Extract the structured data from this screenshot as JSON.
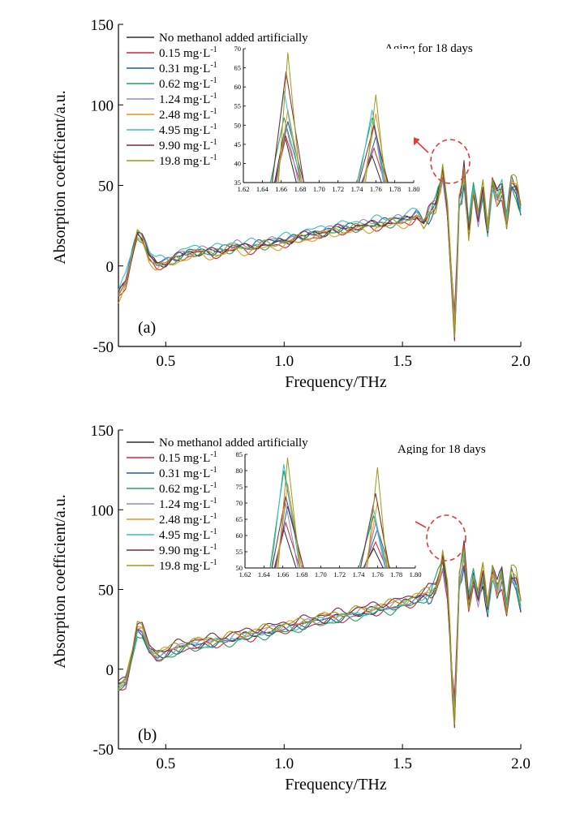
{
  "panels": [
    {
      "panel_label": "(a)",
      "annotation": "Aging for 18 days",
      "xlabel": "Frequency/THz",
      "ylabel": "Absorption coefficient/a.u.",
      "x_ticks": [
        "0.5",
        "1.0",
        "1.5",
        "2.0"
      ],
      "y_ticks": [
        "150",
        "100",
        "50",
        "0",
        "-50"
      ],
      "inset_x_ticks": [
        "1.62",
        "1.64",
        "1.66",
        "1.68",
        "1.70",
        "1.72",
        "1.74",
        "1.76",
        "1.78",
        "1.80"
      ],
      "inset_y_ticks": [
        "70",
        "65",
        "60",
        "55",
        "50",
        "45",
        "40",
        "35"
      ]
    },
    {
      "panel_label": "(b)",
      "annotation": "Aging for 18 days",
      "xlabel": "Frequency/THz",
      "ylabel": "Absorption coefficient/a.u.",
      "x_ticks": [
        "0.5",
        "1.0",
        "1.5",
        "2.0"
      ],
      "y_ticks": [
        "150",
        "100",
        "50",
        "0",
        "-50"
      ],
      "inset_x_ticks": [
        "1.62",
        "1.64",
        "1.66",
        "1.68",
        "1.70",
        "1.72",
        "1.74",
        "1.76",
        "1.78",
        "1.80"
      ],
      "inset_y_ticks": [
        "85",
        "80",
        "75",
        "70",
        "65",
        "60",
        "55",
        "50"
      ]
    }
  ],
  "legend": [
    {
      "name": "No methanol added artificially",
      "color": "#2b2b2b"
    },
    {
      "name": "0.15 mg·L",
      "exp": "-1",
      "color": "#d0263d"
    },
    {
      "name": "0.31 mg·L",
      "exp": "-1",
      "color": "#1f5a9a"
    },
    {
      "name": "0.62 mg·L",
      "exp": "-1",
      "color": "#23a05a"
    },
    {
      "name": "1.24 mg·L",
      "exp": "-1",
      "color": "#9b82c8"
    },
    {
      "name": "2.48 mg·L",
      "exp": "-1",
      "color": "#e8961e"
    },
    {
      "name": "4.95 mg·L",
      "exp": "-1",
      "color": "#3cbcc4"
    },
    {
      "name": "9.90 mg·L",
      "exp": "-1",
      "color": "#7a2a3a"
    },
    {
      "name": "19.8 mg·L",
      "exp": "-1",
      "color": "#9a9a1c"
    }
  ],
  "chart_data": [
    {
      "type": "line",
      "panel": "(a)",
      "xlabel": "Frequency/THz",
      "ylabel": "Absorption coefficient/a.u.",
      "xlim": [
        0.3,
        2.0
      ],
      "ylim": [
        -50,
        150
      ],
      "base_curve": {
        "x": [
          0.3,
          0.33,
          0.36,
          0.38,
          0.4,
          0.43,
          0.46,
          0.5,
          0.55,
          0.6,
          0.65,
          0.7,
          0.75,
          0.8,
          0.85,
          0.9,
          0.95,
          1.0,
          1.05,
          1.1,
          1.15,
          1.2,
          1.25,
          1.3,
          1.35,
          1.4,
          1.45,
          1.5,
          1.53,
          1.56,
          1.59,
          1.62,
          1.64,
          1.66,
          1.67,
          1.69,
          1.7,
          1.71,
          1.72,
          1.73,
          1.74,
          1.75,
          1.76,
          1.78,
          1.8,
          1.82,
          1.84,
          1.86,
          1.88,
          1.9,
          1.92,
          1.94,
          1.96,
          1.98,
          2.0
        ],
        "y": [
          -18,
          -10,
          8,
          20,
          17,
          6,
          1,
          2,
          5,
          8,
          9,
          8,
          10,
          12,
          11,
          13,
          14,
          15,
          17,
          19,
          20,
          22,
          23,
          24,
          25,
          26,
          27,
          28,
          29,
          32,
          26,
          34,
          38,
          50,
          60,
          35,
          10,
          -15,
          -40,
          -5,
          40,
          44,
          58,
          22,
          48,
          30,
          48,
          22,
          52,
          42,
          48,
          28,
          52,
          48,
          35
        ]
      },
      "series": [
        {
          "name": "No methanol added artificially",
          "offset": 0,
          "peak_scale": 0.92
        },
        {
          "name": "0.15 mg·L-1",
          "offset": -2,
          "peak_scale": 0.9
        },
        {
          "name": "0.31 mg·L-1",
          "offset": 1,
          "peak_scale": 0.94
        },
        {
          "name": "0.62 mg·L-1",
          "offset": -1,
          "peak_scale": 0.96
        },
        {
          "name": "1.24 mg·L-1",
          "offset": 2,
          "peak_scale": 0.98
        },
        {
          "name": "2.48 mg·L-1",
          "offset": -3,
          "peak_scale": 1.02
        },
        {
          "name": "4.95 mg·L-1",
          "offset": 4,
          "peak_scale": 1.0
        },
        {
          "name": "9.90 mg·L-1",
          "offset": 1,
          "peak_scale": 1.05
        },
        {
          "name": "19.8 mg·L-1",
          "offset": 0,
          "peak_scale": 1.08
        }
      ],
      "inset": {
        "xlim": [
          1.62,
          1.8
        ],
        "ylim": [
          35,
          70
        ],
        "peak1_x": 1.665,
        "peak2_x": 1.758,
        "peak1_heights": [
          48,
          47,
          51,
          52,
          50,
          54,
          59,
          64,
          69
        ],
        "peak2_heights": [
          42,
          44,
          47,
          52,
          50,
          53,
          54,
          50,
          58
        ]
      }
    },
    {
      "type": "line",
      "panel": "(b)",
      "xlabel": "Frequency/THz",
      "ylabel": "Absorption coefficient/a.u.",
      "xlim": [
        0.3,
        2.0
      ],
      "ylim": [
        -50,
        150
      ],
      "base_curve": {
        "x": [
          0.3,
          0.33,
          0.36,
          0.38,
          0.4,
          0.43,
          0.46,
          0.5,
          0.55,
          0.6,
          0.65,
          0.7,
          0.75,
          0.8,
          0.85,
          0.9,
          0.95,
          1.0,
          1.05,
          1.1,
          1.15,
          1.2,
          1.25,
          1.3,
          1.35,
          1.4,
          1.45,
          1.5,
          1.53,
          1.56,
          1.59,
          1.62,
          1.64,
          1.66,
          1.67,
          1.69,
          1.7,
          1.71,
          1.72,
          1.73,
          1.74,
          1.75,
          1.76,
          1.78,
          1.8,
          1.82,
          1.84,
          1.86,
          1.88,
          1.9,
          1.92,
          1.94,
          1.96,
          1.98,
          2.0
        ],
        "y": [
          -12,
          -8,
          10,
          25,
          24,
          12,
          8,
          10,
          13,
          15,
          16,
          17,
          18,
          20,
          21,
          23,
          24,
          26,
          27,
          29,
          31,
          32,
          33,
          35,
          36,
          38,
          39,
          41,
          42,
          44,
          46,
          48,
          52,
          62,
          70,
          50,
          25,
          -10,
          -30,
          10,
          55,
          62,
          72,
          42,
          58,
          45,
          60,
          38,
          62,
          50,
          60,
          38,
          60,
          55,
          40
        ]
      },
      "series": [
        {
          "name": "No methanol added artificially",
          "offset": 0,
          "peak_scale": 0.88
        },
        {
          "name": "0.15 mg·L-1",
          "offset": -2,
          "peak_scale": 0.86
        },
        {
          "name": "0.31 mg·L-1",
          "offset": -1,
          "peak_scale": 0.94
        },
        {
          "name": "0.62 mg·L-1",
          "offset": -3,
          "peak_scale": 1.02
        },
        {
          "name": "1.24 mg·L-1",
          "offset": 1,
          "peak_scale": 0.98
        },
        {
          "name": "2.48 mg·L-1",
          "offset": 2,
          "peak_scale": 1.04
        },
        {
          "name": "4.95 mg·L-1",
          "offset": 0,
          "peak_scale": 0.96
        },
        {
          "name": "9.90 mg·L-1",
          "offset": 4,
          "peak_scale": 1.06
        },
        {
          "name": "19.8 mg·L-1",
          "offset": 3,
          "peak_scale": 1.1
        }
      ],
      "inset": {
        "xlim": [
          1.62,
          1.8
        ],
        "ylim": [
          50,
          85
        ],
        "peak1_x": 1.663,
        "peak2_x": 1.758,
        "peak1_heights": [
          62,
          64,
          69,
          80,
          70,
          76,
          82,
          72,
          84
        ],
        "peak2_heights": [
          56,
          58,
          62,
          66,
          64,
          70,
          68,
          73,
          81
        ]
      }
    }
  ]
}
